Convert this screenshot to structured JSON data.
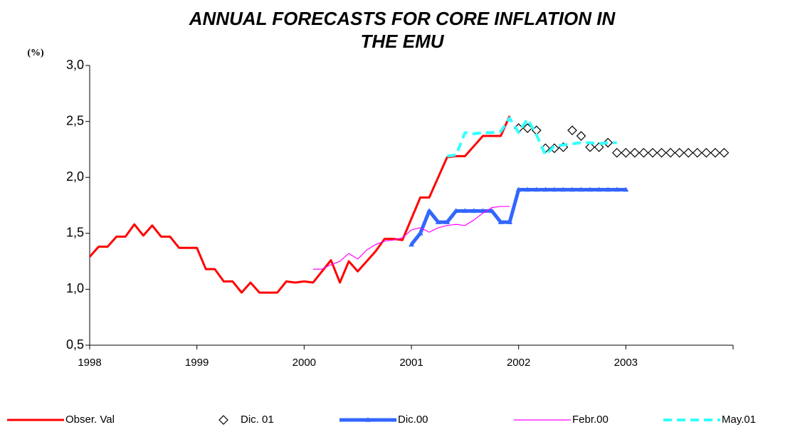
{
  "chart_data": {
    "type": "line",
    "title": "ANNUAL FORECASTS FOR CORE INFLATION IN THE EMU",
    "y_label": "(%)",
    "categories": [
      "1998",
      null,
      null,
      null,
      null,
      null,
      null,
      null,
      null,
      null,
      null,
      null,
      "1999",
      null,
      null,
      null,
      null,
      null,
      null,
      null,
      null,
      null,
      null,
      null,
      "2000",
      null,
      null,
      null,
      null,
      null,
      null,
      null,
      null,
      null,
      null,
      null,
      "2001",
      null,
      null,
      null,
      null,
      null,
      null,
      null,
      null,
      null,
      null,
      null,
      "2002",
      null,
      null,
      null,
      null,
      null,
      null,
      null,
      null,
      null,
      null,
      null,
      "2003",
      null,
      null,
      null,
      null,
      null,
      null,
      null,
      null,
      null,
      null,
      null
    ],
    "ylim": [
      0.5,
      3.0
    ],
    "yticks": [
      {
        "value": 0.5,
        "label": "0,5"
      },
      {
        "value": 1.0,
        "label": "1,0"
      },
      {
        "value": 1.5,
        "label": "1,5"
      },
      {
        "value": 2.0,
        "label": "2,0"
      },
      {
        "value": 2.5,
        "label": "2,5"
      },
      {
        "value": 3.0,
        "label": "3,0"
      }
    ],
    "grid": false,
    "legend": "bottom",
    "series": [
      {
        "name": "Obser. Val",
        "color": "#ff0000",
        "width": 3,
        "style": "solid",
        "values": [
          1.29,
          1.38,
          1.38,
          1.47,
          1.47,
          1.58,
          1.48,
          1.57,
          1.47,
          1.47,
          1.37,
          1.37,
          1.37,
          1.18,
          1.18,
          1.07,
          1.07,
          0.97,
          1.06,
          0.97,
          0.97,
          0.97,
          1.07,
          1.06,
          1.07,
          1.06,
          1.16,
          1.26,
          1.06,
          1.25,
          1.16,
          1.25,
          1.34,
          1.45,
          1.45,
          1.44,
          1.63,
          1.82,
          1.82,
          2.0,
          2.18,
          2.19,
          2.19,
          2.28,
          2.37,
          2.37,
          2.37,
          2.55,
          null,
          null,
          null,
          null,
          null,
          null,
          null,
          null,
          null,
          null,
          null,
          null,
          null,
          null,
          null,
          null,
          null,
          null,
          null,
          null,
          null,
          null,
          null,
          null
        ]
      },
      {
        "name": "Dic. 01",
        "color": "#000000",
        "style": "markers",
        "marker": "diamond",
        "values": [
          null,
          null,
          null,
          null,
          null,
          null,
          null,
          null,
          null,
          null,
          null,
          null,
          null,
          null,
          null,
          null,
          null,
          null,
          null,
          null,
          null,
          null,
          null,
          null,
          null,
          null,
          null,
          null,
          null,
          null,
          null,
          null,
          null,
          null,
          null,
          null,
          null,
          null,
          null,
          null,
          null,
          null,
          null,
          null,
          null,
          null,
          null,
          null,
          2.44,
          2.44,
          2.42,
          2.26,
          2.26,
          2.27,
          2.42,
          2.37,
          2.27,
          2.27,
          2.31,
          2.22,
          2.22,
          2.22,
          2.22,
          2.22,
          2.22,
          2.22,
          2.22,
          2.22,
          2.22,
          2.22,
          2.22,
          2.22
        ]
      },
      {
        "name": "Dic.00",
        "color": "#3366ff",
        "width": 5,
        "style": "solid",
        "marker": "triangle",
        "values": [
          null,
          null,
          null,
          null,
          null,
          null,
          null,
          null,
          null,
          null,
          null,
          null,
          null,
          null,
          null,
          null,
          null,
          null,
          null,
          null,
          null,
          null,
          null,
          null,
          null,
          null,
          null,
          null,
          null,
          null,
          null,
          null,
          null,
          null,
          null,
          null,
          1.4,
          1.5,
          1.7,
          1.6,
          1.6,
          1.7,
          1.7,
          1.7,
          1.7,
          1.7,
          1.6,
          1.6,
          1.89,
          1.89,
          1.89,
          1.89,
          1.89,
          1.89,
          1.89,
          1.89,
          1.89,
          1.89,
          1.89,
          1.89,
          1.89,
          null,
          null,
          null,
          null,
          null,
          null,
          null,
          null,
          null,
          null,
          null
        ]
      },
      {
        "name": "Febr.00",
        "color": "#ff00ff",
        "width": 1.2,
        "style": "solid",
        "values": [
          null,
          null,
          null,
          null,
          null,
          null,
          null,
          null,
          null,
          null,
          null,
          null,
          null,
          null,
          null,
          null,
          null,
          null,
          null,
          null,
          null,
          null,
          null,
          null,
          null,
          1.18,
          1.18,
          1.22,
          1.25,
          1.32,
          1.27,
          1.35,
          1.4,
          1.43,
          1.44,
          1.46,
          1.53,
          1.55,
          1.51,
          1.55,
          1.57,
          1.58,
          1.57,
          1.62,
          1.68,
          1.73,
          1.74,
          1.74,
          null,
          null,
          null,
          null,
          null,
          null,
          null,
          null,
          null,
          null,
          null,
          null,
          null,
          null,
          null,
          null,
          null,
          null,
          null,
          null,
          null,
          null,
          null,
          null
        ]
      },
      {
        "name": "May.01",
        "color": "#33ffff",
        "width": 4,
        "style": "dashed",
        "values": [
          null,
          null,
          null,
          null,
          null,
          null,
          null,
          null,
          null,
          null,
          null,
          null,
          null,
          null,
          null,
          null,
          null,
          null,
          null,
          null,
          null,
          null,
          null,
          null,
          null,
          null,
          null,
          null,
          null,
          null,
          null,
          null,
          null,
          null,
          null,
          null,
          null,
          null,
          null,
          null,
          2.19,
          2.2,
          2.4,
          2.39,
          2.4,
          2.4,
          2.41,
          2.53,
          2.4,
          2.52,
          2.38,
          2.2,
          2.28,
          2.29,
          2.3,
          2.31,
          2.31,
          2.3,
          2.31,
          2.31,
          null,
          null,
          null,
          null,
          null,
          null,
          null,
          null,
          null,
          null,
          null,
          null
        ]
      }
    ]
  }
}
